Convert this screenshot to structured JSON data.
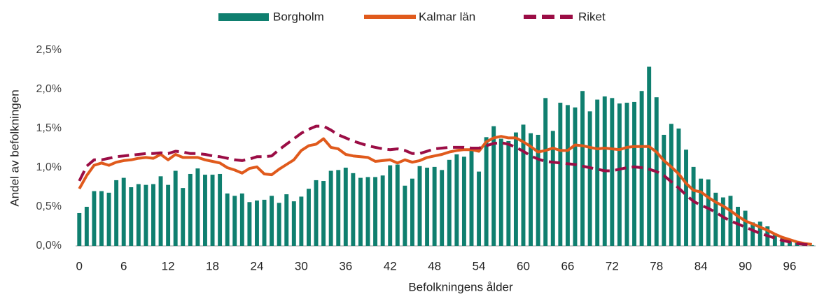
{
  "chart_data": {
    "type": "bar",
    "x_label": "Befolkningens ålder",
    "y_label": "Andel av befolkningen",
    "categories": [
      0,
      null,
      null,
      null,
      null,
      null,
      6,
      null,
      null,
      null,
      null,
      null,
      12,
      null,
      null,
      null,
      null,
      null,
      18,
      null,
      null,
      null,
      null,
      null,
      24,
      null,
      null,
      null,
      null,
      null,
      30,
      null,
      null,
      null,
      null,
      null,
      36,
      null,
      null,
      null,
      null,
      null,
      42,
      null,
      null,
      null,
      null,
      null,
      48,
      null,
      null,
      null,
      null,
      null,
      54,
      null,
      null,
      null,
      null,
      null,
      60,
      null,
      null,
      null,
      null,
      null,
      66,
      null,
      null,
      null,
      null,
      null,
      72,
      null,
      null,
      null,
      null,
      null,
      78,
      null,
      null,
      null,
      null,
      null,
      84,
      null,
      null,
      null,
      null,
      null,
      90,
      null,
      null,
      null,
      null,
      null,
      96,
      null,
      null,
      null
    ],
    "series": [
      {
        "name": "Borgholm",
        "kind": "bar",
        "color": "#0f7f6f",
        "values": [
          0.42,
          0.5,
          0.7,
          0.7,
          0.68,
          0.84,
          0.87,
          0.75,
          0.79,
          0.78,
          0.79,
          0.89,
          0.78,
          0.96,
          0.74,
          0.92,
          0.99,
          0.91,
          0.91,
          0.92,
          0.67,
          0.64,
          0.67,
          0.56,
          0.58,
          0.59,
          0.64,
          0.55,
          0.66,
          0.57,
          0.63,
          0.73,
          0.84,
          0.83,
          0.96,
          0.97,
          1.0,
          0.93,
          0.87,
          0.88,
          0.88,
          0.9,
          1.03,
          1.04,
          0.77,
          0.86,
          1.02,
          1.0,
          1.01,
          0.97,
          1.1,
          1.17,
          1.14,
          1.22,
          0.95,
          1.39,
          1.53,
          1.37,
          1.34,
          1.45,
          1.55,
          1.44,
          1.42,
          1.89,
          1.47,
          1.83,
          1.8,
          1.77,
          1.98,
          1.72,
          1.87,
          1.91,
          1.89,
          1.82,
          1.83,
          1.84,
          1.98,
          2.29,
          1.9,
          1.42,
          1.56,
          1.5,
          1.23,
          1.01,
          0.86,
          0.85,
          0.68,
          0.62,
          0.64,
          0.5,
          0.45,
          0.3,
          0.31,
          0.25,
          0.16,
          0.1,
          0.07,
          0.04,
          0.02,
          0.01
        ]
      },
      {
        "name": "Kalmar län",
        "kind": "line",
        "color": "#e05a1c",
        "values": [
          0.73,
          0.9,
          1.03,
          1.06,
          1.03,
          1.07,
          1.09,
          1.1,
          1.12,
          1.13,
          1.12,
          1.17,
          1.1,
          1.17,
          1.13,
          1.13,
          1.13,
          1.1,
          1.08,
          1.06,
          1.0,
          0.97,
          0.93,
          0.99,
          1.01,
          0.92,
          0.91,
          0.98,
          1.04,
          1.1,
          1.22,
          1.28,
          1.3,
          1.37,
          1.26,
          1.24,
          1.17,
          1.15,
          1.14,
          1.13,
          1.08,
          1.09,
          1.1,
          1.06,
          1.1,
          1.07,
          1.09,
          1.13,
          1.15,
          1.17,
          1.2,
          1.22,
          1.23,
          1.23,
          1.21,
          1.33,
          1.38,
          1.4,
          1.38,
          1.38,
          1.33,
          1.27,
          1.2,
          1.22,
          1.25,
          1.22,
          1.22,
          1.29,
          1.28,
          1.26,
          1.24,
          1.25,
          1.24,
          1.23,
          1.26,
          1.27,
          1.27,
          1.27,
          1.2,
          1.09,
          1.01,
          0.92,
          0.8,
          0.71,
          0.69,
          0.62,
          0.56,
          0.51,
          0.45,
          0.38,
          0.32,
          0.28,
          0.24,
          0.2,
          0.15,
          0.11,
          0.08,
          0.05,
          0.03,
          0.02
        ]
      },
      {
        "name": "Riket",
        "kind": "dashed",
        "color": "#9b0d45",
        "values": [
          0.83,
          1.02,
          1.1,
          1.1,
          1.12,
          1.14,
          1.15,
          1.16,
          1.17,
          1.18,
          1.18,
          1.19,
          1.18,
          1.21,
          1.2,
          1.18,
          1.18,
          1.17,
          1.15,
          1.14,
          1.12,
          1.1,
          1.09,
          1.11,
          1.14,
          1.14,
          1.15,
          1.23,
          1.3,
          1.37,
          1.44,
          1.49,
          1.53,
          1.53,
          1.48,
          1.42,
          1.38,
          1.34,
          1.31,
          1.28,
          1.26,
          1.24,
          1.23,
          1.24,
          1.22,
          1.18,
          1.18,
          1.21,
          1.24,
          1.25,
          1.26,
          1.26,
          1.26,
          1.25,
          1.25,
          1.28,
          1.31,
          1.32,
          1.3,
          1.26,
          1.21,
          1.15,
          1.11,
          1.08,
          1.07,
          1.06,
          1.05,
          1.04,
          1.02,
          1.0,
          0.98,
          0.96,
          0.96,
          0.98,
          1.0,
          1.01,
          1.0,
          0.98,
          0.95,
          0.9,
          0.82,
          0.74,
          0.65,
          0.57,
          0.52,
          0.48,
          0.43,
          0.37,
          0.32,
          0.28,
          0.24,
          0.2,
          0.16,
          0.13,
          0.1,
          0.07,
          0.05,
          0.03,
          0.02,
          0.01
        ]
      }
    ],
    "ylim": [
      0,
      2.5
    ],
    "yticks": [
      {
        "value": 0,
        "label": "0,0%"
      },
      {
        "value": 0.5,
        "label": "0,5%"
      },
      {
        "value": 1,
        "label": "1,0%"
      },
      {
        "value": 1.5,
        "label": "1,5%"
      },
      {
        "value": 2,
        "label": "2,0%"
      },
      {
        "value": 2.5,
        "label": "2,5%"
      }
    ],
    "legend": "top",
    "grid": false
  }
}
